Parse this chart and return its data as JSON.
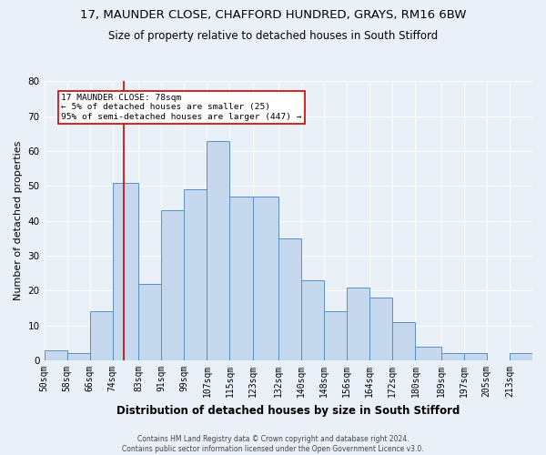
{
  "title_line1": "17, MAUNDER CLOSE, CHAFFORD HUNDRED, GRAYS, RM16 6BW",
  "title_line2": "Size of property relative to detached houses in South Stifford",
  "xlabel": "Distribution of detached houses by size in South Stifford",
  "ylabel": "Number of detached properties",
  "footnote": "Contains HM Land Registry data © Crown copyright and database right 2024.\nContains public sector information licensed under the Open Government Licence v3.0.",
  "bin_labels": [
    "50sqm",
    "58sqm",
    "66sqm",
    "74sqm",
    "83sqm",
    "91sqm",
    "99sqm",
    "107sqm",
    "115sqm",
    "123sqm",
    "132sqm",
    "140sqm",
    "148sqm",
    "156sqm",
    "164sqm",
    "172sqm",
    "180sqm",
    "189sqm",
    "197sqm",
    "205sqm",
    "213sqm"
  ],
  "bar_values": [
    3,
    2,
    14,
    51,
    22,
    43,
    49,
    63,
    47,
    47,
    35,
    23,
    14,
    21,
    18,
    11,
    4,
    2,
    2,
    0,
    2
  ],
  "bin_edges": [
    50,
    58,
    66,
    74,
    83,
    91,
    99,
    107,
    115,
    123,
    132,
    140,
    148,
    156,
    164,
    172,
    180,
    189,
    197,
    205,
    213
  ],
  "bar_color": "#c5d8ed",
  "bar_edge_color": "#5a8fc3",
  "vline_x": 78,
  "vline_color": "#cc0000",
  "annotation_text": "17 MAUNDER CLOSE: 78sqm\n← 5% of detached houses are smaller (25)\n95% of semi-detached houses are larger (447) →",
  "annotation_box_color": "#ffffff",
  "annotation_box_edge": "#cc0000",
  "ylim": [
    0,
    80
  ],
  "yticks": [
    0,
    10,
    20,
    30,
    40,
    50,
    60,
    70,
    80
  ],
  "bg_color": "#eaf0f8",
  "plot_bg_color": "#eaf0f8",
  "grid_color": "#ffffff",
  "title_fontsize": 9.5,
  "subtitle_fontsize": 8.5,
  "axis_label_fontsize": 8,
  "tick_fontsize": 7,
  "footnote_fontsize": 5.5
}
